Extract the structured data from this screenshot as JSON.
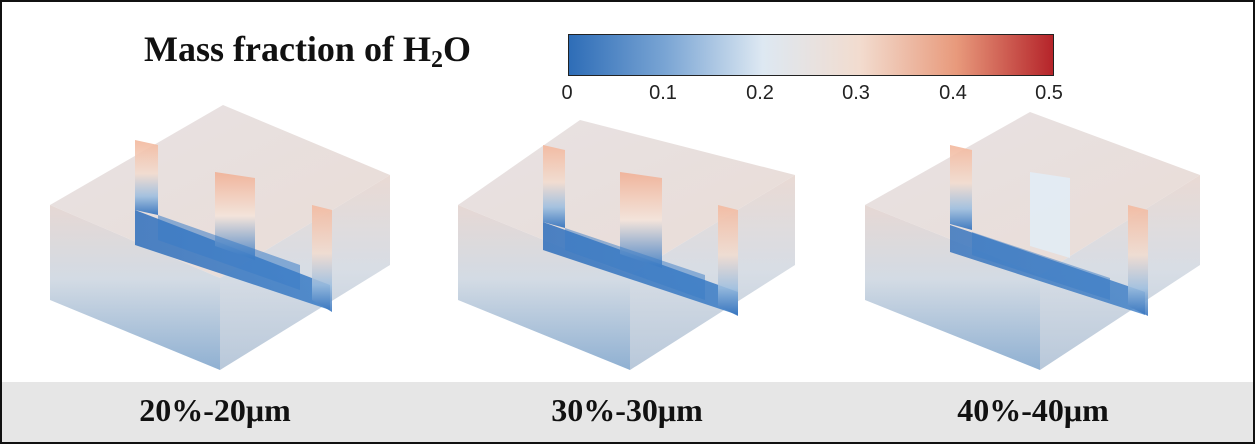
{
  "legend": {
    "title_main": "Mass fraction of H",
    "title_sub": "2",
    "title_tail": "O",
    "ticks": [
      "0",
      "0.1",
      "0.2",
      "0.3",
      "0.4",
      "0.5"
    ],
    "colors": [
      "#2e6db7",
      "#7aa5d4",
      "#dde8f2",
      "#f2dccf",
      "#e89a7c",
      "#b5242a"
    ]
  },
  "panels": [
    {
      "label": "20%-20μm"
    },
    {
      "label": "30%-30μm"
    },
    {
      "label": "40%-40μm"
    }
  ]
}
